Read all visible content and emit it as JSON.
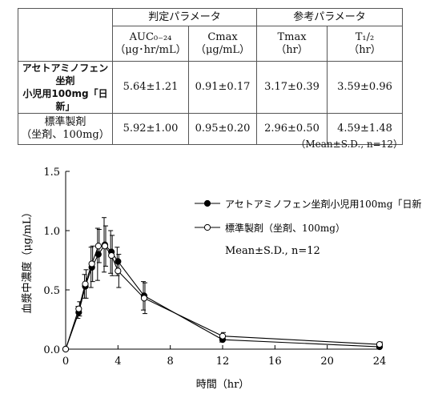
{
  "table": {
    "group_headers": [
      "判定パラメータ",
      "参考パラメータ"
    ],
    "param_names": [
      "AUC₀₋₂₄",
      "Cmax",
      "Tmax",
      "T₁/₂"
    ],
    "param_units": [
      "（μg･hr/mL）",
      "（μg/mL）",
      "（hr）",
      "（hr）"
    ],
    "rows": [
      {
        "label_lines": [
          "アセトアミノフェン坐剤",
          "小児用100mg「日新」"
        ],
        "values": [
          "5.64±1.21",
          "0.91±0.17",
          "3.17±0.39",
          "3.59±0.96"
        ]
      },
      {
        "label_lines": [
          "標準製剤",
          "（坐剤、100mg）"
        ],
        "values": [
          "5.92±1.00",
          "0.95±0.20",
          "2.96±0.50",
          "4.59±1.48"
        ]
      }
    ],
    "note": "（Mean±S.D.,  n=12）"
  },
  "chart_data": {
    "type": "line",
    "xlabel": "時間（hr）",
    "ylabel": "血漿中濃度（μg/mL）",
    "xlim": [
      0,
      24
    ],
    "ylim": [
      0,
      1.5
    ],
    "xticks": [
      0,
      4,
      8,
      12,
      16,
      20,
      24
    ],
    "yticks": [
      "0.0",
      "0.5",
      "1.0",
      "1.5"
    ],
    "grid": false,
    "legend_position": "top-right",
    "annotation": "Mean±S.D., n=12",
    "series": [
      {
        "name": "アセトアミノフェン坐剤小児用100mg「日新」",
        "marker": "filled-circle",
        "x": [
          0,
          1,
          1.5,
          2,
          2.5,
          3,
          3.5,
          4,
          6,
          12,
          24
        ],
        "y": [
          0,
          0.31,
          0.53,
          0.69,
          0.8,
          0.88,
          0.82,
          0.74,
          0.45,
          0.08,
          0.02
        ],
        "err": [
          0,
          0.05,
          0.1,
          0.17,
          0.22,
          0.23,
          0.18,
          0.12,
          0.12,
          0.02,
          0.01
        ]
      },
      {
        "name": "標準製剤（坐剤、100mg）",
        "marker": "open-circle",
        "x": [
          0,
          1,
          1.5,
          2,
          2.5,
          3,
          3.5,
          4,
          6,
          12,
          24
        ],
        "y": [
          0,
          0.34,
          0.55,
          0.72,
          0.87,
          0.87,
          0.79,
          0.66,
          0.43,
          0.11,
          0.04
        ],
        "err": [
          0,
          0.06,
          0.12,
          0.15,
          0.14,
          0.17,
          0.17,
          0.14,
          0.13,
          0.03,
          0.02
        ]
      }
    ]
  }
}
